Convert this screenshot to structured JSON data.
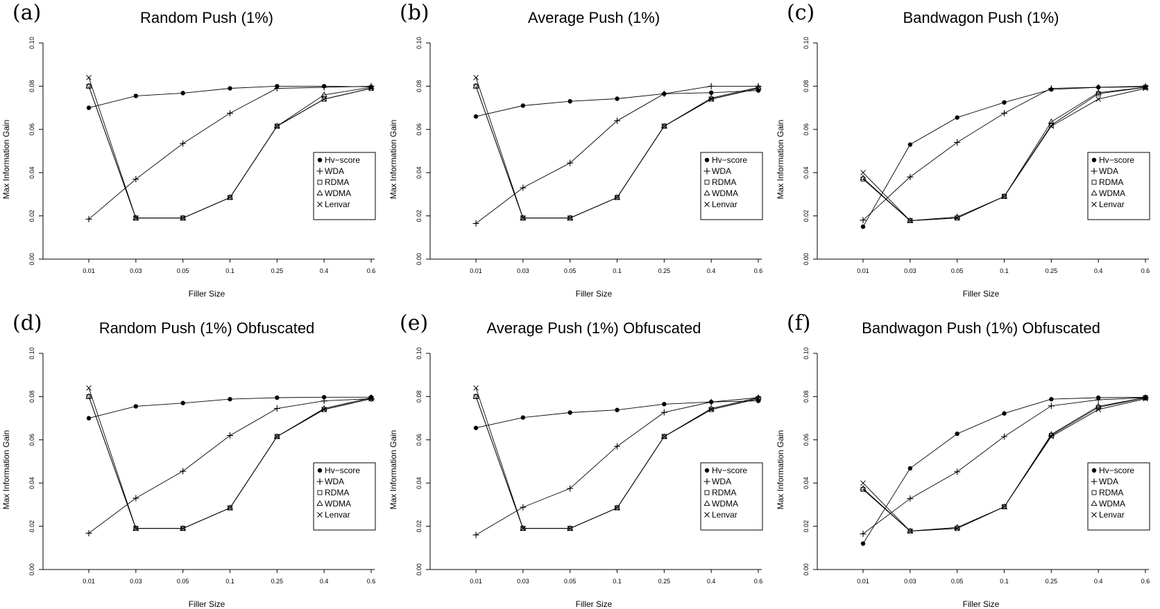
{
  "chart_data": [
    {
      "type": "line",
      "panel_label": "(a)",
      "title": "Random Push (1%)",
      "xlabel": "Filler Size",
      "ylabel": "Max Information Gain",
      "categories": [
        "0.01",
        "0.03",
        "0.05",
        "0.1",
        "0.25",
        "0.4",
        "0.6"
      ],
      "ylim": [
        0,
        0.1
      ],
      "yticks": [
        "0.00",
        "0.02",
        "0.04",
        "0.06",
        "0.08",
        "0.10"
      ],
      "grid": false,
      "legend_position": "right",
      "series": [
        {
          "name": "Hv−score",
          "marker": "circle",
          "values": [
            0.07,
            0.0755,
            0.0768,
            0.079,
            0.08,
            0.08,
            0.0797
          ]
        },
        {
          "name": "WDA",
          "marker": "plus",
          "values": [
            0.0185,
            0.037,
            0.0535,
            0.0675,
            0.079,
            0.0795,
            0.08
          ]
        },
        {
          "name": "RDMA",
          "marker": "square",
          "values": [
            0.08,
            0.019,
            0.019,
            0.0285,
            0.0615,
            0.074,
            0.079
          ]
        },
        {
          "name": "WDMA",
          "marker": "triangle",
          "values": [
            0.08,
            0.019,
            0.019,
            0.0285,
            0.0615,
            0.076,
            0.0795
          ]
        },
        {
          "name": "Lenvar",
          "marker": "x",
          "values": [
            0.084,
            0.019,
            0.019,
            0.0285,
            0.0615,
            0.074,
            0.079
          ]
        }
      ]
    },
    {
      "type": "line",
      "panel_label": "(b)",
      "title": "Average Push (1%)",
      "xlabel": "Filler Size",
      "ylabel": "Max Information Gain",
      "categories": [
        "0.01",
        "0.03",
        "0.05",
        "0.1",
        "0.25",
        "0.4",
        "0.6"
      ],
      "ylim": [
        0,
        0.1
      ],
      "yticks": [
        "0.00",
        "0.02",
        "0.04",
        "0.06",
        "0.08",
        "0.10"
      ],
      "grid": false,
      "legend_position": "right",
      "series": [
        {
          "name": "Hv−score",
          "marker": "circle",
          "values": [
            0.066,
            0.071,
            0.073,
            0.0742,
            0.0765,
            0.077,
            0.078
          ]
        },
        {
          "name": "WDA",
          "marker": "plus",
          "values": [
            0.0165,
            0.033,
            0.0445,
            0.064,
            0.0765,
            0.08,
            0.08
          ]
        },
        {
          "name": "RDMA",
          "marker": "square",
          "values": [
            0.08,
            0.019,
            0.019,
            0.0285,
            0.0615,
            0.074,
            0.079
          ]
        },
        {
          "name": "WDMA",
          "marker": "triangle",
          "values": [
            0.08,
            0.019,
            0.019,
            0.0285,
            0.0615,
            0.0745,
            0.0795
          ]
        },
        {
          "name": "Lenvar",
          "marker": "x",
          "values": [
            0.084,
            0.019,
            0.019,
            0.0285,
            0.0615,
            0.074,
            0.079
          ]
        }
      ]
    },
    {
      "type": "line",
      "panel_label": "(c)",
      "title": "Bandwagon Push (1%)",
      "xlabel": "Filler Size",
      "ylabel": "Max Information Gain",
      "categories": [
        "0.01",
        "0.03",
        "0.05",
        "0.1",
        "0.25",
        "0.4",
        "0.6"
      ],
      "ylim": [
        0,
        0.1
      ],
      "yticks": [
        "0.00",
        "0.02",
        "0.04",
        "0.06",
        "0.08",
        "0.10"
      ],
      "grid": false,
      "legend_position": "right",
      "series": [
        {
          "name": "Hv−score",
          "marker": "circle",
          "values": [
            0.015,
            0.053,
            0.0655,
            0.0725,
            0.0785,
            0.0795,
            0.0797
          ]
        },
        {
          "name": "WDA",
          "marker": "plus",
          "values": [
            0.018,
            0.038,
            0.054,
            0.0675,
            0.079,
            0.0795,
            0.08
          ]
        },
        {
          "name": "RDMA",
          "marker": "square",
          "values": [
            0.037,
            0.0178,
            0.019,
            0.029,
            0.062,
            0.0765,
            0.0795
          ]
        },
        {
          "name": "WDMA",
          "marker": "triangle",
          "values": [
            0.0375,
            0.0178,
            0.0195,
            0.029,
            0.0635,
            0.077,
            0.0795
          ]
        },
        {
          "name": "Lenvar",
          "marker": "x",
          "values": [
            0.04,
            0.0178,
            0.019,
            0.029,
            0.0615,
            0.074,
            0.079
          ]
        }
      ]
    },
    {
      "type": "line",
      "panel_label": "(d)",
      "title": "Random Push (1%) Obfuscated",
      "xlabel": "Filler Size",
      "ylabel": "Max Information Gain",
      "categories": [
        "0.01",
        "0.03",
        "0.05",
        "0.1",
        "0.25",
        "0.4",
        "0.6"
      ],
      "ylim": [
        0,
        0.1
      ],
      "yticks": [
        "0.00",
        "0.02",
        "0.04",
        "0.06",
        "0.08",
        "0.10"
      ],
      "grid": false,
      "legend_position": "right",
      "series": [
        {
          "name": "Hv−score",
          "marker": "circle",
          "values": [
            0.07,
            0.0755,
            0.077,
            0.0788,
            0.0795,
            0.0797,
            0.0797
          ]
        },
        {
          "name": "WDA",
          "marker": "plus",
          "values": [
            0.0168,
            0.033,
            0.0455,
            0.062,
            0.0745,
            0.078,
            0.079
          ]
        },
        {
          "name": "RDMA",
          "marker": "square",
          "values": [
            0.08,
            0.019,
            0.019,
            0.0285,
            0.0615,
            0.074,
            0.079
          ]
        },
        {
          "name": "WDMA",
          "marker": "triangle",
          "values": [
            0.08,
            0.019,
            0.019,
            0.0285,
            0.0615,
            0.0745,
            0.0795
          ]
        },
        {
          "name": "Lenvar",
          "marker": "x",
          "values": [
            0.084,
            0.019,
            0.019,
            0.0285,
            0.0615,
            0.074,
            0.079
          ]
        }
      ]
    },
    {
      "type": "line",
      "panel_label": "(e)",
      "title": "Average Push (1%) Obfuscated",
      "xlabel": "Filler Size",
      "ylabel": "Max Information Gain",
      "categories": [
        "0.01",
        "0.03",
        "0.05",
        "0.1",
        "0.25",
        "0.4",
        "0.6"
      ],
      "ylim": [
        0,
        0.1
      ],
      "yticks": [
        "0.00",
        "0.02",
        "0.04",
        "0.06",
        "0.08",
        "0.10"
      ],
      "grid": false,
      "legend_position": "right",
      "series": [
        {
          "name": "Hv−score",
          "marker": "circle",
          "values": [
            0.0655,
            0.0703,
            0.0726,
            0.0738,
            0.0765,
            0.0775,
            0.078
          ]
        },
        {
          "name": "WDA",
          "marker": "plus",
          "values": [
            0.016,
            0.0288,
            0.0375,
            0.057,
            0.0727,
            0.0775,
            0.0795
          ]
        },
        {
          "name": "RDMA",
          "marker": "square",
          "values": [
            0.08,
            0.019,
            0.019,
            0.0285,
            0.0615,
            0.074,
            0.079
          ]
        },
        {
          "name": "WDMA",
          "marker": "triangle",
          "values": [
            0.08,
            0.019,
            0.019,
            0.0285,
            0.0615,
            0.0745,
            0.0795
          ]
        },
        {
          "name": "Lenvar",
          "marker": "x",
          "values": [
            0.084,
            0.019,
            0.019,
            0.0285,
            0.0615,
            0.074,
            0.079
          ]
        }
      ]
    },
    {
      "type": "line",
      "panel_label": "(f)",
      "title": "Bandwagon Push (1%) Obfuscated",
      "xlabel": "Filler Size",
      "ylabel": "Max Information Gain",
      "categories": [
        "0.01",
        "0.03",
        "0.05",
        "0.1",
        "0.25",
        "0.4",
        "0.6"
      ],
      "ylim": [
        0,
        0.1
      ],
      "yticks": [
        "0.00",
        "0.02",
        "0.04",
        "0.06",
        "0.08",
        "0.10"
      ],
      "grid": false,
      "legend_position": "right",
      "series": [
        {
          "name": "Hv−score",
          "marker": "circle",
          "values": [
            0.012,
            0.0468,
            0.0628,
            0.0722,
            0.0788,
            0.0795,
            0.0797
          ]
        },
        {
          "name": "WDA",
          "marker": "plus",
          "values": [
            0.0165,
            0.0328,
            0.0452,
            0.0615,
            0.0757,
            0.0785,
            0.0795
          ]
        },
        {
          "name": "RDMA",
          "marker": "square",
          "values": [
            0.037,
            0.0178,
            0.019,
            0.029,
            0.062,
            0.075,
            0.0795
          ]
        },
        {
          "name": "WDMA",
          "marker": "triangle",
          "values": [
            0.0375,
            0.0178,
            0.0195,
            0.029,
            0.0625,
            0.0755,
            0.0795
          ]
        },
        {
          "name": "Lenvar",
          "marker": "x",
          "values": [
            0.04,
            0.0178,
            0.019,
            0.029,
            0.0615,
            0.074,
            0.079
          ]
        }
      ]
    }
  ]
}
